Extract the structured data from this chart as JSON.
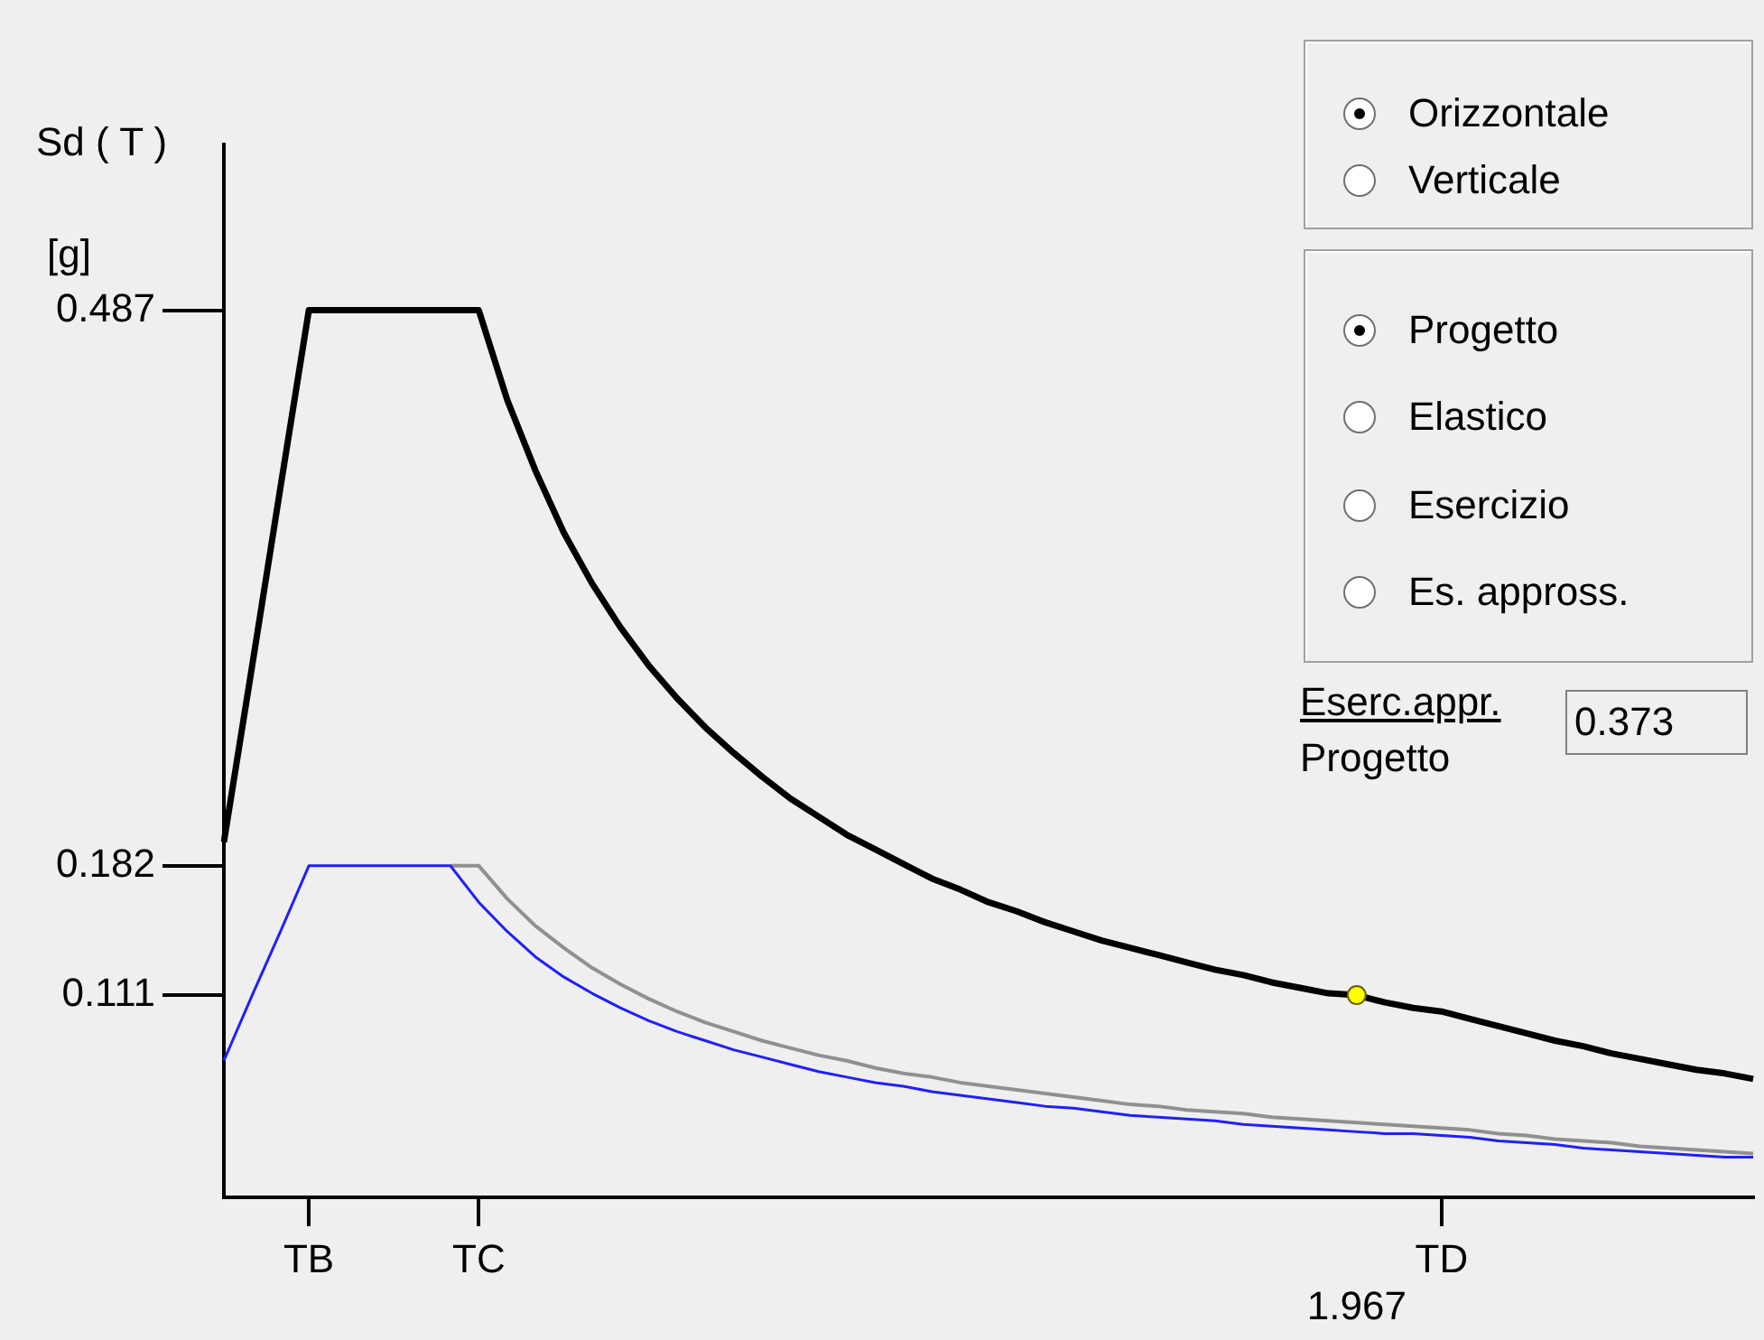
{
  "chart_data": {
    "type": "line",
    "ylabel": "Sd ( T )",
    "ylim": [
      0,
      0.578
    ],
    "categories": [
      null,
      null,
      null,
      "TB",
      null,
      null,
      null,
      null,
      null,
      "TC",
      null,
      null,
      null,
      null,
      null,
      null,
      null,
      null,
      null,
      null,
      null,
      null,
      null,
      null,
      null,
      null,
      null,
      null,
      null,
      null,
      null,
      null,
      null,
      null,
      null,
      null,
      null,
      null,
      null,
      null,
      "1.967",
      null,
      null,
      "TD",
      null,
      null,
      null,
      null,
      null,
      null,
      null,
      null,
      null,
      null,
      null
    ],
    "yticks": [
      0.111,
      0.182,
      0.487
    ],
    "grid": false,
    "legend": false,
    "marker": "none",
    "series": [
      {
        "color": "#909090",
        "values": [
          null,
          null,
          null,
          null,
          null,
          null,
          null,
          null,
          0.182,
          0.182,
          0.164,
          0.149,
          0.137,
          0.126,
          0.117,
          0.109,
          0.102,
          0.096,
          0.091,
          0.086,
          0.082,
          0.078,
          0.075,
          0.071,
          0.068,
          0.066,
          0.063,
          0.061,
          0.059,
          0.057,
          0.055,
          0.053,
          0.051,
          0.05,
          0.048,
          0.047,
          0.046,
          0.044,
          0.043,
          0.042,
          0.041,
          0.04,
          0.039,
          0.038,
          0.037,
          0.035,
          0.034,
          0.032,
          0.031,
          0.03,
          0.028,
          0.027,
          0.026,
          0.025,
          0.024
        ]
      },
      {
        "color": "#1f1fff",
        "values": [
          0.075,
          0.111,
          0.146,
          0.182,
          0.182,
          0.182,
          0.182,
          0.182,
          0.182,
          0.162,
          0.146,
          0.132,
          0.121,
          0.112,
          0.104,
          0.097,
          0.091,
          0.086,
          0.081,
          0.077,
          0.073,
          0.069,
          0.066,
          0.063,
          0.061,
          0.058,
          0.056,
          0.054,
          0.052,
          0.05,
          0.049,
          0.047,
          0.045,
          0.044,
          0.043,
          0.042,
          0.04,
          0.039,
          0.038,
          0.037,
          0.036,
          0.035,
          0.035,
          0.034,
          0.033,
          0.031,
          0.03,
          0.029,
          0.027,
          0.026,
          0.025,
          0.024,
          0.023,
          0.022,
          0.022
        ]
      },
      {
        "color": "#000000",
        "values": [
          0.195,
          0.292,
          0.39,
          0.487,
          0.487,
          0.487,
          0.487,
          0.487,
          0.487,
          0.487,
          0.438,
          0.399,
          0.365,
          0.337,
          0.313,
          0.292,
          0.274,
          0.258,
          0.244,
          0.231,
          0.219,
          0.209,
          0.199,
          0.191,
          0.183,
          0.175,
          0.169,
          0.162,
          0.157,
          0.151,
          0.146,
          0.141,
          0.137,
          0.133,
          0.129,
          0.125,
          0.122,
          0.118,
          0.115,
          0.112,
          0.111,
          0.107,
          0.104,
          0.102,
          0.098,
          0.094,
          0.09,
          0.086,
          0.083,
          0.079,
          0.076,
          0.073,
          0.07,
          0.068,
          0.065
        ]
      },
      {
        "type": "scatter",
        "marker": "circle",
        "color": "#ffff00",
        "x": [
          "1.967"
        ],
        "values": [
          0.111
        ]
      }
    ],
    "annotations": [
      "[g]",
      "Orizzontale",
      "Verticale",
      "Progetto",
      "Elastico",
      "Esercizio",
      "Es. appross.",
      "Eserc.appr.",
      "Progetto",
      "0.373"
    ]
  }
}
